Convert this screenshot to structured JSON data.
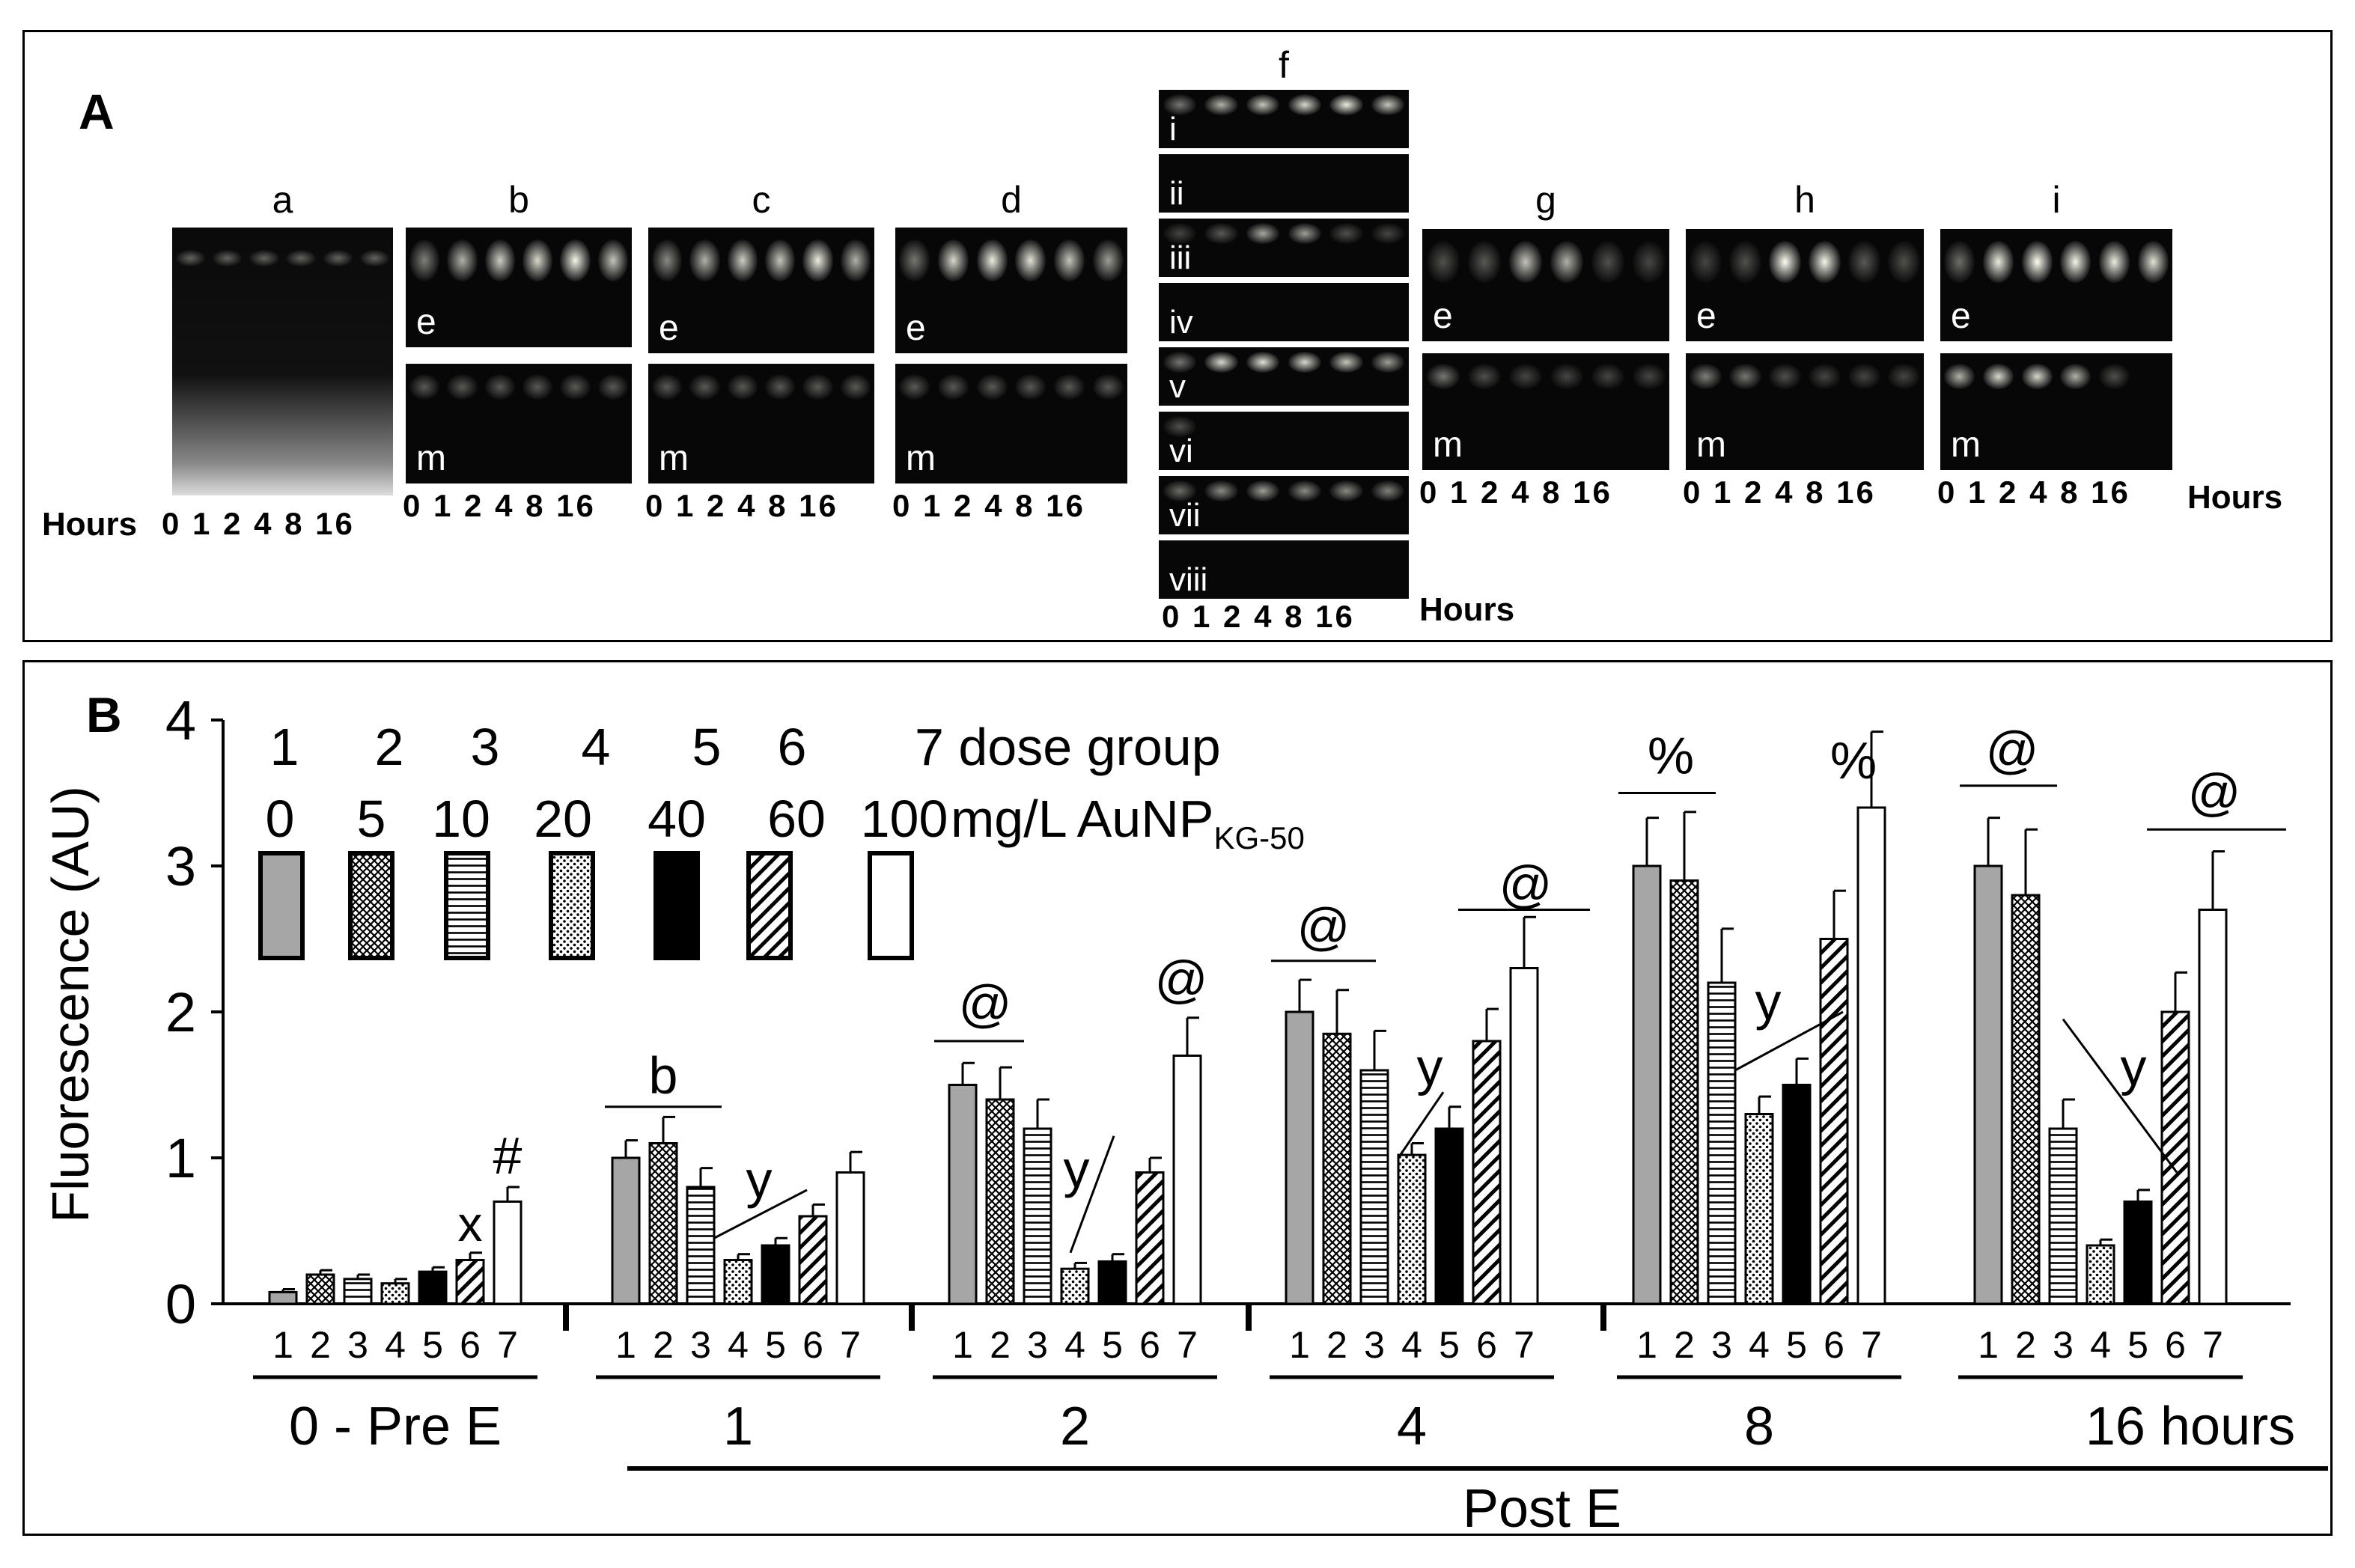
{
  "panelA": {
    "letter": "A",
    "hours_label": "Hours",
    "lane_labels": "0 1 2 4 8 16",
    "columns": [
      "a",
      "b",
      "c",
      "d",
      "f",
      "g",
      "h",
      "i"
    ],
    "top_row_label": "e",
    "bottom_row_label": "m",
    "f_rows": [
      "i",
      "ii",
      "iii",
      "iv",
      "v",
      "vi",
      "vii",
      "viii"
    ]
  },
  "panelB": {
    "letter": "B",
    "legend": {
      "group_numbers": [
        "1",
        "2",
        "3",
        "4",
        "5",
        "6",
        "7 dose group"
      ],
      "doses": [
        "0",
        "5",
        "10",
        "20",
        "40",
        "60",
        "100"
      ],
      "unit_prefix": "mg/L AuNP",
      "unit_subscript": "KG-50"
    },
    "timepoint_labels": [
      "0 - Pre E",
      "1",
      "2",
      "4",
      "8",
      "16  hours"
    ],
    "post_label": "Post E",
    "group_tick_labels": [
      "1",
      "2",
      "3",
      "4",
      "5",
      "6",
      "7"
    ]
  },
  "chart_data": {
    "type": "bar",
    "ylabel": "Fluorescence (AU)",
    "ylim": [
      0,
      4
    ],
    "yticks": [
      0,
      1,
      2,
      3,
      4
    ],
    "categories": [
      "0 - Pre E",
      "1",
      "2",
      "4",
      "8",
      "16"
    ],
    "series": [
      {
        "name": "1",
        "fill": "gray",
        "values": [
          0.08,
          1.0,
          1.5,
          2.0,
          3.0,
          3.0
        ],
        "errors": [
          0.02,
          0.12,
          0.15,
          0.22,
          0.33,
          0.33
        ]
      },
      {
        "name": "2",
        "fill": "crosshatch",
        "values": [
          0.2,
          1.1,
          1.4,
          1.85,
          2.9,
          2.8
        ],
        "errors": [
          0.03,
          0.18,
          0.22,
          0.3,
          0.47,
          0.45
        ]
      },
      {
        "name": "3",
        "fill": "horizontal",
        "values": [
          0.17,
          0.8,
          1.2,
          1.6,
          2.2,
          1.2
        ],
        "errors": [
          0.03,
          0.13,
          0.2,
          0.27,
          0.37,
          0.2
        ]
      },
      {
        "name": "4",
        "fill": "dots",
        "values": [
          0.14,
          0.3,
          0.24,
          1.02,
          1.3,
          0.4
        ],
        "errors": [
          0.03,
          0.04,
          0.04,
          0.08,
          0.12,
          0.04
        ]
      },
      {
        "name": "5",
        "fill": "black",
        "values": [
          0.22,
          0.4,
          0.29,
          1.2,
          1.5,
          0.7
        ],
        "errors": [
          0.03,
          0.05,
          0.05,
          0.15,
          0.18,
          0.08
        ]
      },
      {
        "name": "6",
        "fill": "diagonal",
        "values": [
          0.3,
          0.6,
          0.9,
          1.8,
          2.5,
          2.0
        ],
        "errors": [
          0.05,
          0.08,
          0.1,
          0.22,
          0.33,
          0.27
        ]
      },
      {
        "name": "7",
        "fill": "white",
        "values": [
          0.7,
          0.9,
          1.7,
          2.3,
          3.4,
          2.7
        ],
        "errors": [
          0.1,
          0.14,
          0.26,
          0.35,
          0.52,
          0.4
        ]
      }
    ],
    "annotations": [
      {
        "group": 0,
        "text": "x"
      },
      {
        "group": 0,
        "text": "#"
      },
      {
        "group": 1,
        "text": "b"
      },
      {
        "group": 1,
        "text": "y"
      },
      {
        "group": 2,
        "text": "@"
      },
      {
        "group": 2,
        "text": "y"
      },
      {
        "group": 2,
        "text": "@"
      },
      {
        "group": 3,
        "text": "@"
      },
      {
        "group": 3,
        "text": "y"
      },
      {
        "group": 3,
        "text": "@"
      },
      {
        "group": 4,
        "text": "%"
      },
      {
        "group": 4,
        "text": "y"
      },
      {
        "group": 4,
        "text": "%"
      },
      {
        "group": 5,
        "text": "@"
      },
      {
        "group": 5,
        "text": "y"
      },
      {
        "group": 5,
        "text": "@"
      }
    ]
  }
}
